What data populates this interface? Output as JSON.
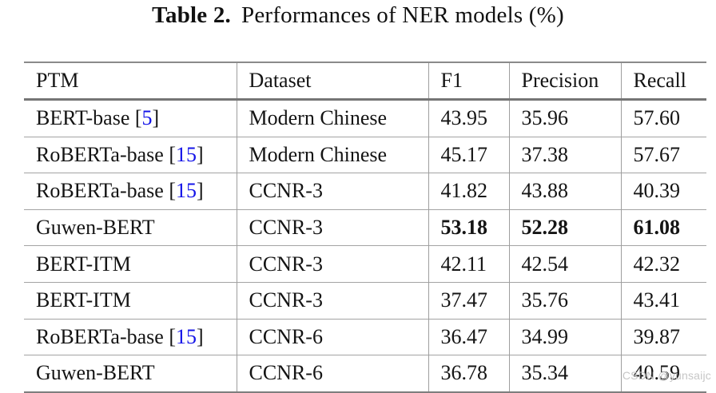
{
  "title": {
    "label": "Table 2.",
    "text": "Performances of NER models (%)"
  },
  "table": {
    "columns": [
      "PTM",
      "Dataset",
      "F1",
      "Precision",
      "Recall"
    ],
    "rows": [
      {
        "ptm": "BERT-base",
        "cite": "5",
        "dataset": "Modern Chinese",
        "f1": "43.95",
        "precision": "35.96",
        "recall": "57.60",
        "bold": false
      },
      {
        "ptm": "RoBERTa-base",
        "cite": "15",
        "dataset": "Modern Chinese",
        "f1": "45.17",
        "precision": "37.38",
        "recall": "57.67",
        "bold": false
      },
      {
        "ptm": "RoBERTa-base",
        "cite": "15",
        "dataset": "CCNR-3",
        "f1": "41.82",
        "precision": "43.88",
        "recall": "40.39",
        "bold": false
      },
      {
        "ptm": "Guwen-BERT",
        "cite": null,
        "dataset": "CCNR-3",
        "f1": "53.18",
        "precision": "52.28",
        "recall": "61.08",
        "bold": true
      },
      {
        "ptm": "BERT-ITM",
        "cite": null,
        "dataset": "CCNR-3",
        "f1": "42.11",
        "precision": "42.54",
        "recall": "42.32",
        "bold": false
      },
      {
        "ptm": "BERT-ITM",
        "cite": null,
        "dataset": "CCNR-3",
        "f1": "37.47",
        "precision": "35.76",
        "recall": "43.41",
        "bold": false
      },
      {
        "ptm": "RoBERTa-base",
        "cite": "15",
        "dataset": "CCNR-6",
        "f1": "36.47",
        "precision": "34.99",
        "recall": "39.87",
        "bold": false
      },
      {
        "ptm": "Guwen-BERT",
        "cite": null,
        "dataset": "CCNR-6",
        "f1": "36.78",
        "precision": "35.34",
        "recall": "40.59",
        "bold": false
      }
    ]
  },
  "watermark": "CSDN @yunsaijc",
  "colors": {
    "citation_link": "#1414e8",
    "rule_gray": "#8a8a8a",
    "watermark_gray": "#c6c6c6"
  }
}
